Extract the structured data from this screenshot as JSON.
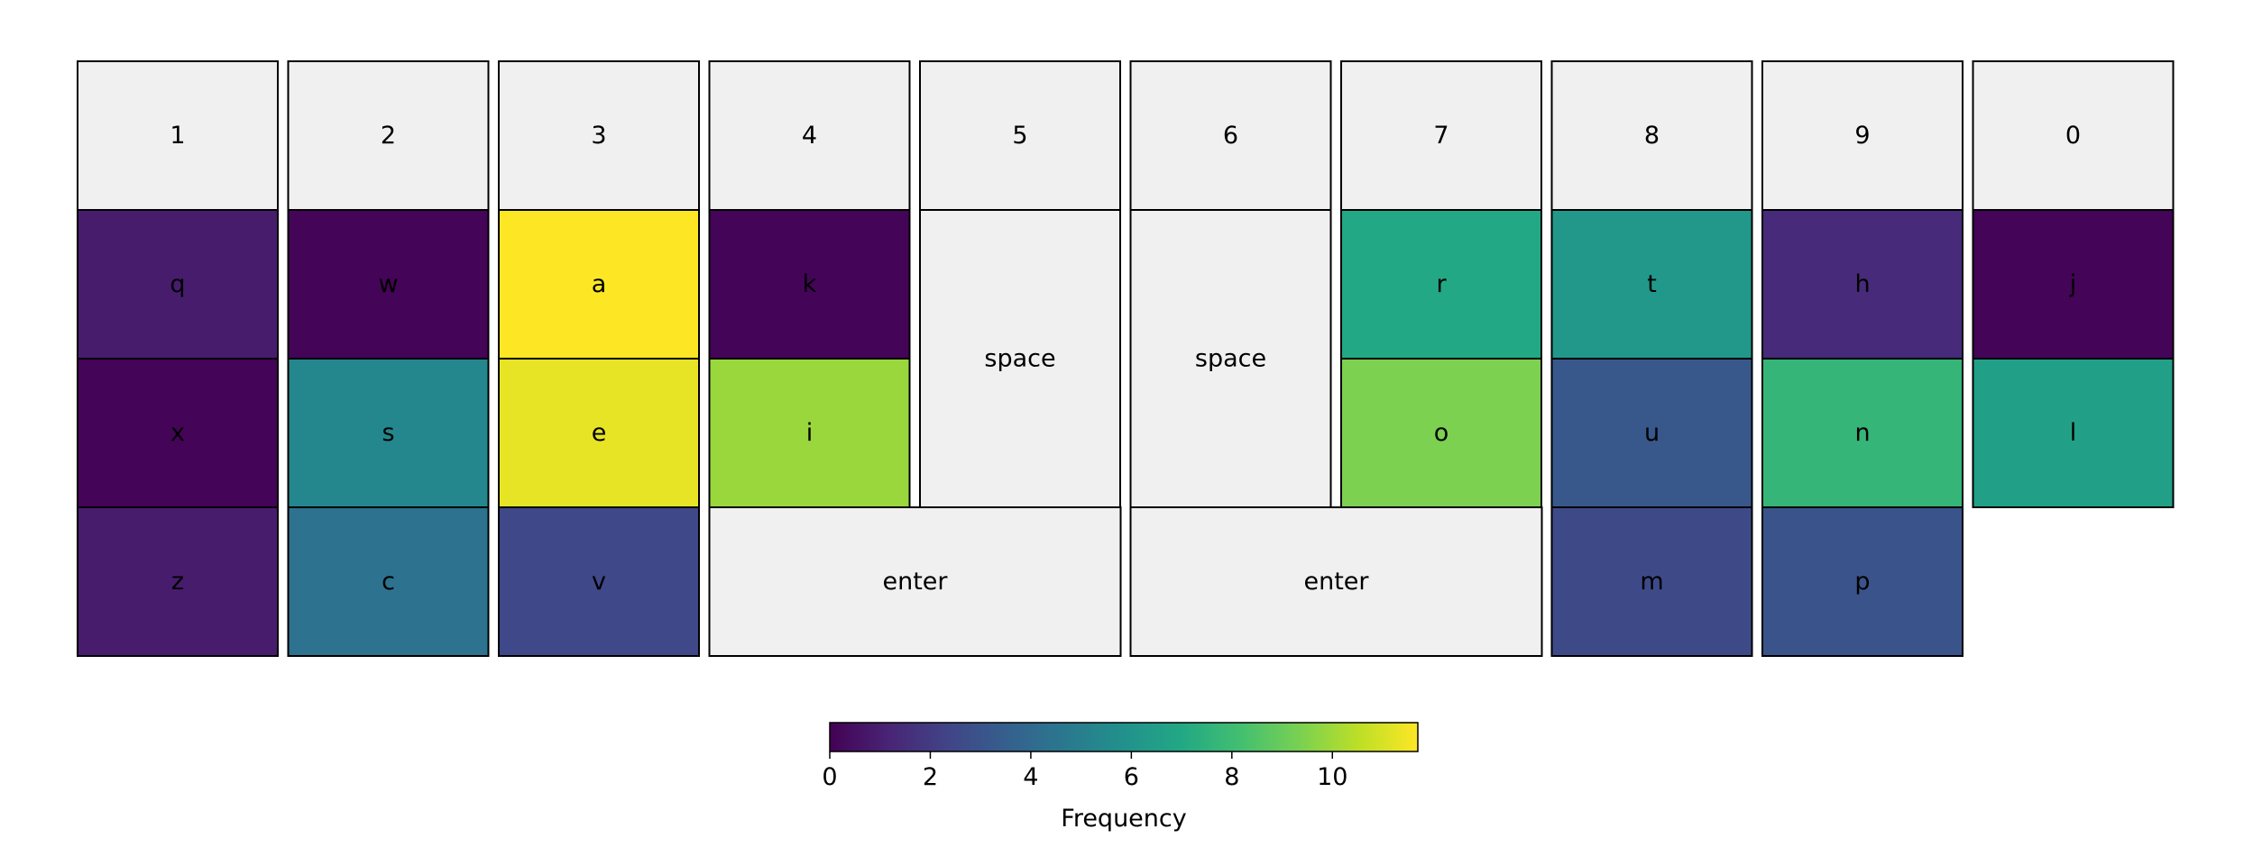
{
  "chart_data": {
    "type": "heatmap",
    "title": "",
    "neutral_color": "#f0f0f0",
    "colormap": "viridis",
    "colorbar": {
      "label": "Frequency",
      "range": [
        0,
        11.7
      ],
      "ticks": [
        0,
        2,
        4,
        6,
        8,
        10
      ],
      "tick_labels": [
        "0",
        "2",
        "4",
        "6",
        "8",
        "10"
      ]
    },
    "keys": [
      {
        "label": "1",
        "col": 0,
        "row": 0,
        "colspan": 1,
        "rowspan": 1,
        "value": null
      },
      {
        "label": "2",
        "col": 1,
        "row": 0,
        "colspan": 1,
        "rowspan": 1,
        "value": null
      },
      {
        "label": "3",
        "col": 2,
        "row": 0,
        "colspan": 1,
        "rowspan": 1,
        "value": null
      },
      {
        "label": "4",
        "col": 3,
        "row": 0,
        "colspan": 1,
        "rowspan": 1,
        "value": null
      },
      {
        "label": "5",
        "col": 4,
        "row": 0,
        "colspan": 1,
        "rowspan": 1,
        "value": null
      },
      {
        "label": "6",
        "col": 5,
        "row": 0,
        "colspan": 1,
        "rowspan": 1,
        "value": null
      },
      {
        "label": "7",
        "col": 6,
        "row": 0,
        "colspan": 1,
        "rowspan": 1,
        "value": null
      },
      {
        "label": "8",
        "col": 7,
        "row": 0,
        "colspan": 1,
        "rowspan": 1,
        "value": null
      },
      {
        "label": "9",
        "col": 8,
        "row": 0,
        "colspan": 1,
        "rowspan": 1,
        "value": null
      },
      {
        "label": "0",
        "col": 9,
        "row": 0,
        "colspan": 1,
        "rowspan": 1,
        "value": null
      },
      {
        "label": "q",
        "col": 0,
        "row": 1,
        "colspan": 1,
        "rowspan": 1,
        "value": 0.9
      },
      {
        "label": "w",
        "col": 1,
        "row": 1,
        "colspan": 1,
        "rowspan": 1,
        "value": 0.1
      },
      {
        "label": "a",
        "col": 2,
        "row": 1,
        "colspan": 1,
        "rowspan": 1,
        "value": 11.7
      },
      {
        "label": "k",
        "col": 3,
        "row": 1,
        "colspan": 1,
        "rowspan": 1,
        "value": 0.1
      },
      {
        "label": "space",
        "col": 4,
        "row": 1,
        "colspan": 1,
        "rowspan": 2,
        "value": null
      },
      {
        "label": "space",
        "col": 5,
        "row": 1,
        "colspan": 1,
        "rowspan": 2,
        "value": null
      },
      {
        "label": "r",
        "col": 6,
        "row": 1,
        "colspan": 1,
        "rowspan": 1,
        "value": 7.0
      },
      {
        "label": "t",
        "col": 7,
        "row": 1,
        "colspan": 1,
        "rowspan": 1,
        "value": 6.2
      },
      {
        "label": "h",
        "col": 8,
        "row": 1,
        "colspan": 1,
        "rowspan": 1,
        "value": 1.4
      },
      {
        "label": "j",
        "col": 9,
        "row": 1,
        "colspan": 1,
        "rowspan": 1,
        "value": 0.1
      },
      {
        "label": "x",
        "col": 0,
        "row": 2,
        "colspan": 1,
        "rowspan": 1,
        "value": 0.1
      },
      {
        "label": "s",
        "col": 1,
        "row": 2,
        "colspan": 1,
        "rowspan": 1,
        "value": 5.4
      },
      {
        "label": "e",
        "col": 2,
        "row": 2,
        "colspan": 1,
        "rowspan": 1,
        "value": 11.3
      },
      {
        "label": "i",
        "col": 3,
        "row": 2,
        "colspan": 1,
        "rowspan": 1,
        "value": 9.9
      },
      {
        "label": "o",
        "col": 6,
        "row": 2,
        "colspan": 1,
        "rowspan": 1,
        "value": 9.4
      },
      {
        "label": "u",
        "col": 7,
        "row": 2,
        "colspan": 1,
        "rowspan": 1,
        "value": 3.2
      },
      {
        "label": "n",
        "col": 8,
        "row": 2,
        "colspan": 1,
        "rowspan": 1,
        "value": 7.7
      },
      {
        "label": "l",
        "col": 9,
        "row": 2,
        "colspan": 1,
        "rowspan": 1,
        "value": 6.6
      },
      {
        "label": "z",
        "col": 0,
        "row": 3,
        "colspan": 1,
        "rowspan": 1,
        "value": 0.9
      },
      {
        "label": "c",
        "col": 1,
        "row": 3,
        "colspan": 1,
        "rowspan": 1,
        "value": 4.4
      },
      {
        "label": "v",
        "col": 2,
        "row": 3,
        "colspan": 1,
        "rowspan": 1,
        "value": 2.5
      },
      {
        "label": "enter",
        "col": 3,
        "row": 3,
        "colspan": 2,
        "rowspan": 1,
        "value": null
      },
      {
        "label": "enter",
        "col": 5,
        "row": 3,
        "colspan": 2,
        "rowspan": 1,
        "value": null
      },
      {
        "label": "m",
        "col": 7,
        "row": 3,
        "colspan": 1,
        "rowspan": 1,
        "value": 2.6
      },
      {
        "label": "p",
        "col": 8,
        "row": 3,
        "colspan": 1,
        "rowspan": 1,
        "value": 3.0
      }
    ]
  }
}
